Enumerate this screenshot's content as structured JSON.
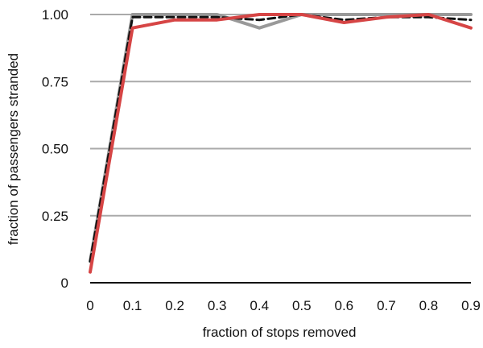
{
  "chart_data": {
    "type": "line",
    "title": "",
    "xlabel": "fraction of stops removed",
    "ylabel": "fraction of passengers stranded",
    "x": [
      0,
      0.1,
      0.2,
      0.3,
      0.4,
      0.5,
      0.6,
      0.7,
      0.8,
      0.9
    ],
    "x_tick_labels": [
      "0",
      "0.1",
      "0.2",
      "0.3",
      "0.4",
      "0.5",
      "0.6",
      "0.7",
      "0.8",
      "0.9"
    ],
    "y_ticks": [
      0,
      0.25,
      0.5,
      0.75,
      1.0
    ],
    "y_tick_labels": [
      "0",
      "0.25",
      "0.50",
      "0.75",
      "1.00"
    ],
    "xlim": [
      0,
      0.9
    ],
    "ylim": [
      0,
      1.0
    ],
    "grid": "horizontal",
    "legend": "none",
    "series": [
      {
        "color": "#999999",
        "style": "solid",
        "values": [
          0.08,
          1.0,
          1.0,
          1.0,
          0.95,
          1.0,
          1.0,
          1.0,
          1.0,
          1.0
        ]
      },
      {
        "color": "#111111",
        "style": "dashed",
        "values": [
          0.08,
          0.99,
          0.99,
          0.99,
          0.98,
          1.0,
          0.98,
          0.99,
          0.99,
          0.98
        ]
      },
      {
        "color": "#d64545",
        "style": "solid",
        "values": [
          0.04,
          0.95,
          0.98,
          0.98,
          1.0,
          1.0,
          0.97,
          0.99,
          1.0,
          0.95
        ]
      }
    ]
  }
}
